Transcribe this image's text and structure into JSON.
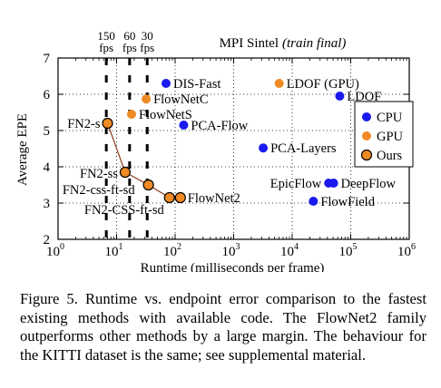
{
  "chart_data": {
    "type": "scatter",
    "title": "MPI Sintel",
    "title_italic": "(train final)",
    "xlabel": "Runtime (milliseconds per frame)",
    "ylabel": "Average EPE",
    "x_scale": "log",
    "xlim": [
      1,
      1000000
    ],
    "ylim": [
      2,
      7
    ],
    "x_ticks": [
      1,
      10,
      100,
      1000,
      10000,
      100000,
      1000000
    ],
    "x_tick_labels": [
      {
        "base": "10",
        "exp": "0"
      },
      {
        "base": "10",
        "exp": "1"
      },
      {
        "base": "10",
        "exp": "2"
      },
      {
        "base": "10",
        "exp": "3"
      },
      {
        "base": "10",
        "exp": "4"
      },
      {
        "base": "10",
        "exp": "5"
      },
      {
        "base": "10",
        "exp": "6"
      }
    ],
    "y_ticks": [
      2,
      3,
      4,
      5,
      6,
      7
    ],
    "y_tick_labels": [
      "2",
      "3",
      "4",
      "5",
      "6",
      "7"
    ],
    "fps_markers": [
      {
        "ms": 6.67,
        "label_top": "150",
        "label_bottom": "fps"
      },
      {
        "ms": 16.67,
        "label_top": "60",
        "label_bottom": "fps"
      },
      {
        "ms": 33.33,
        "label_top": "30",
        "label_bottom": "fps"
      }
    ],
    "grid": "dotted",
    "colors": {
      "CPU": "#1a1aee",
      "GPU": "#f08a24",
      "Ours": "#f08a24",
      "ours_edge": "#000000",
      "ours_line": "#8b3a1a"
    },
    "legend": {
      "placement": "right",
      "entries": [
        {
          "label": "CPU",
          "group": "CPU"
        },
        {
          "label": "GPU",
          "group": "GPU"
        },
        {
          "label": "Ours",
          "group": "Ours"
        }
      ]
    },
    "series": [
      {
        "group": "CPU",
        "points": [
          {
            "label": "DIS-Fast",
            "x": 70,
            "y": 6.3
          },
          {
            "label": "PCA-Flow",
            "x": 140,
            "y": 5.15
          },
          {
            "label": "PCA-Layers",
            "x": 3200,
            "y": 4.52
          },
          {
            "label": "LDOF",
            "x": 65000,
            "y": 5.95
          },
          {
            "label": "EpicFlow",
            "x": 42000,
            "y": 3.55
          },
          {
            "label": "DeepFlow",
            "x": 51000,
            "y": 3.55
          },
          {
            "label": "FlowField",
            "x": 23000,
            "y": 3.05
          }
        ]
      },
      {
        "group": "GPU",
        "points": [
          {
            "label": "FlowNetC",
            "x": 32,
            "y": 5.87
          },
          {
            "label": "FlowNetS",
            "x": 18,
            "y": 5.45
          },
          {
            "label": "LDOF (GPU)",
            "x": 6000,
            "y": 6.3
          }
        ]
      },
      {
        "group": "Ours",
        "connected": true,
        "points": [
          {
            "label": "FN2-s",
            "x": 7,
            "y": 5.2
          },
          {
            "label": "FN2-ss",
            "x": 14,
            "y": 3.85
          },
          {
            "label": "FN2-css-ft-sd",
            "x": 35,
            "y": 3.5
          },
          {
            "label": "FN2-CSS-ft-sd",
            "x": 80,
            "y": 3.15
          },
          {
            "label": "FlowNet2",
            "x": 123,
            "y": 3.15
          }
        ]
      }
    ]
  },
  "caption": "Figure 5. Runtime vs. endpoint error comparison to the fastest existing methods with available code. The FlowNet2 family outperforms other methods by a large margin. The behaviour for the KITTI dataset is the same; see supplemental material."
}
